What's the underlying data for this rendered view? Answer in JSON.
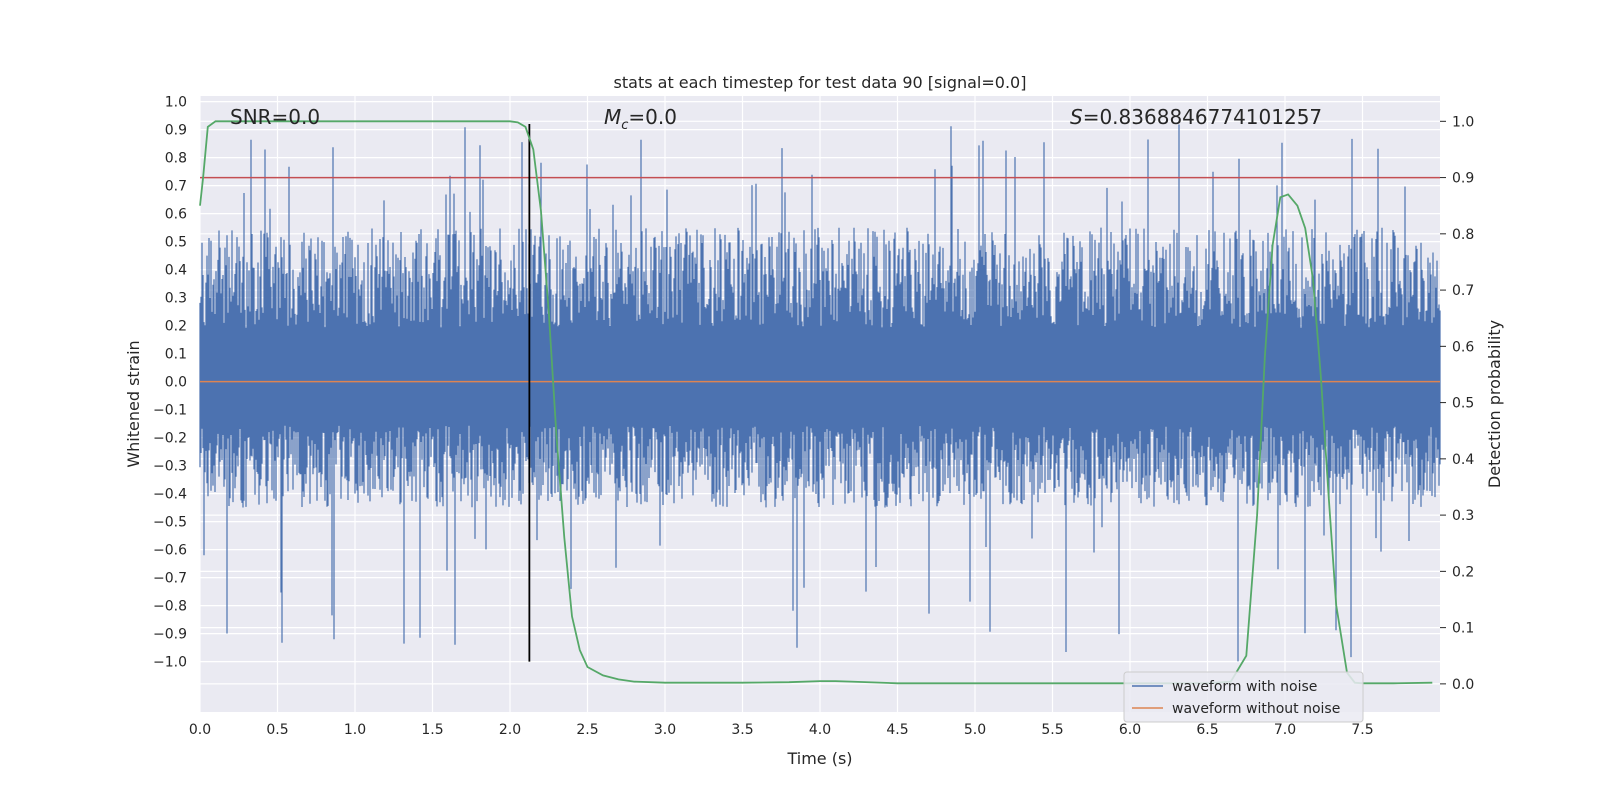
{
  "chart_data": {
    "type": "line",
    "title": "stats at each timestep for test data 90 [signal=0.0]",
    "xlabel": "Time (s)",
    "ylabel": "Whitened strain",
    "y2label": "Detection probability",
    "xlim": [
      0.0,
      8.0
    ],
    "ylim": [
      -1.18,
      1.02
    ],
    "y2lim": [
      -0.05,
      1.045
    ],
    "x_ticks": [
      0.0,
      0.5,
      1.0,
      1.5,
      2.0,
      2.5,
      3.0,
      3.5,
      4.0,
      4.5,
      5.0,
      5.5,
      6.0,
      6.5,
      7.0,
      7.5
    ],
    "x_tick_labels": [
      "0.0",
      "0.5",
      "1.0",
      "1.5",
      "2.0",
      "2.5",
      "3.0",
      "3.5",
      "4.0",
      "4.5",
      "5.0",
      "5.5",
      "6.0",
      "6.5",
      "7.0",
      "7.5"
    ],
    "y_ticks": [
      1.0,
      0.9,
      0.8,
      0.7,
      0.6,
      0.5,
      0.4,
      0.3,
      0.2,
      0.1,
      0.0,
      -0.1,
      -0.2,
      -0.3,
      -0.4,
      -0.5,
      -0.6,
      -0.7,
      -0.8,
      -0.9,
      -1.0
    ],
    "y_tick_labels": [
      "1.0",
      "0.9",
      "0.8",
      "0.7",
      "0.6",
      "0.5",
      "0.4",
      "0.3",
      "0.2",
      "0.1",
      "0.0",
      "−0.1",
      "−0.2",
      "−0.3",
      "−0.4",
      "−0.5",
      "−0.6",
      "−0.7",
      "−0.8",
      "−0.9",
      "−1.0"
    ],
    "y2_ticks": [
      1.0,
      0.9,
      0.8,
      0.7,
      0.6,
      0.5,
      0.4,
      0.3,
      0.2,
      0.1,
      0.0
    ],
    "y2_tick_labels": [
      "1.0",
      "0.9",
      "0.8",
      "0.7",
      "0.6",
      "0.5",
      "0.4",
      "0.3",
      "0.2",
      "0.1",
      "0.0"
    ],
    "annotations": {
      "snr": "SNR=0.0",
      "mc_symbol": "M",
      "mc_sub": "c",
      "mc_value": "=0.0",
      "s_symbol": "S",
      "s_value": "=0.8368846774101257"
    },
    "threshold_line": {
      "axis": "right",
      "value": 0.9,
      "color": "#c44e52"
    },
    "marker_line": {
      "x": 2.125,
      "y_from": -1.0,
      "y_to": 0.92,
      "color": "#000000"
    },
    "noise_band": {
      "typical_low": -0.45,
      "typical_high": 0.55,
      "max_spike": 0.92,
      "min_spike": -1.0
    },
    "series": [
      {
        "name": "waveform with noise",
        "color": "#4c72b0",
        "axis": "left",
        "description_points": "dense noise"
      },
      {
        "name": "waveform without noise",
        "color": "#dd8452",
        "axis": "left",
        "x": [
          0.0,
          8.0
        ],
        "y": [
          0.0,
          0.0
        ]
      },
      {
        "name": "detection probability",
        "color": "#55a868",
        "axis": "right",
        "x": [
          0.0,
          0.02,
          0.05,
          0.1,
          0.15,
          0.3,
          0.6,
          1.0,
          1.5,
          1.9,
          2.0,
          2.05,
          2.1,
          2.15,
          2.2,
          2.25,
          2.3,
          2.35,
          2.4,
          2.45,
          2.5,
          2.6,
          2.7,
          2.8,
          3.0,
          3.5,
          3.8,
          4.0,
          4.1,
          4.2,
          4.5,
          5.0,
          5.5,
          6.0,
          6.5,
          6.65,
          6.75,
          6.82,
          6.87,
          6.92,
          6.97,
          7.02,
          7.08,
          7.13,
          7.18,
          7.23,
          7.28,
          7.33,
          7.4,
          7.45,
          7.5,
          7.7,
          7.95
        ],
        "y": [
          0.85,
          0.9,
          0.99,
          1.0,
          1.0,
          1.0,
          1.0,
          1.0,
          1.0,
          1.0,
          1.0,
          0.998,
          0.99,
          0.95,
          0.84,
          0.66,
          0.44,
          0.26,
          0.12,
          0.06,
          0.03,
          0.015,
          0.008,
          0.004,
          0.002,
          0.002,
          0.003,
          0.005,
          0.005,
          0.004,
          0.001,
          0.001,
          0.001,
          0.001,
          0.001,
          0.004,
          0.05,
          0.3,
          0.58,
          0.78,
          0.865,
          0.87,
          0.85,
          0.81,
          0.72,
          0.55,
          0.34,
          0.14,
          0.02,
          0.002,
          0.001,
          0.001,
          0.002
        ]
      }
    ],
    "legend": {
      "position": "bottom-right",
      "entries": [
        {
          "label": "waveform with noise",
          "color": "#4c72b0"
        },
        {
          "label": "waveform without noise",
          "color": "#dd8452"
        }
      ]
    },
    "grid": true
  },
  "colors": {
    "plot_bg": "#eaeaf2",
    "grid": "#ffffff",
    "noise": "#4c72b0",
    "clean": "#dd8452",
    "prob": "#55a868",
    "threshold": "#c44e52"
  }
}
